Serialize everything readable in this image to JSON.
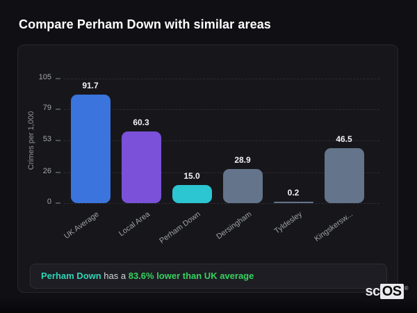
{
  "page": {
    "title": "Compare Perham Down with similar areas",
    "background": "#101014",
    "card_background": "#17171b"
  },
  "chart_data": {
    "type": "bar",
    "title": "Compare Perham Down with similar areas",
    "categories": [
      "UK Average",
      "Local Area",
      "Perham Down",
      "Dersingham",
      "Tyldesley",
      "Kingskersw..."
    ],
    "values": [
      91.7,
      60.3,
      15.0,
      28.9,
      0.2,
      46.5
    ],
    "bar_colors": [
      "#3a74dc",
      "#7a51d8",
      "#2cc5d2",
      "#64748b",
      "#64748b",
      "#64748b"
    ],
    "xlabel": "",
    "ylabel": "Crimes per 1,000",
    "yticks": [
      0,
      26,
      53,
      79,
      105
    ],
    "ylim": [
      0,
      105
    ],
    "grid": "dashed horizontal gridlines at each y tick",
    "legend": "none",
    "value_label_color": "#f1f2f4",
    "tick_label_color": "#a2a7ae"
  },
  "note": {
    "highlight": "Perham Down",
    "middle": " has a ",
    "stat": "83.6% lower than UK average",
    "highlight_color": "#2fd4b5",
    "stat_color": "#36d35f"
  },
  "logo": {
    "prefix": "sc",
    "suffix": "OS",
    "registered": "®"
  }
}
